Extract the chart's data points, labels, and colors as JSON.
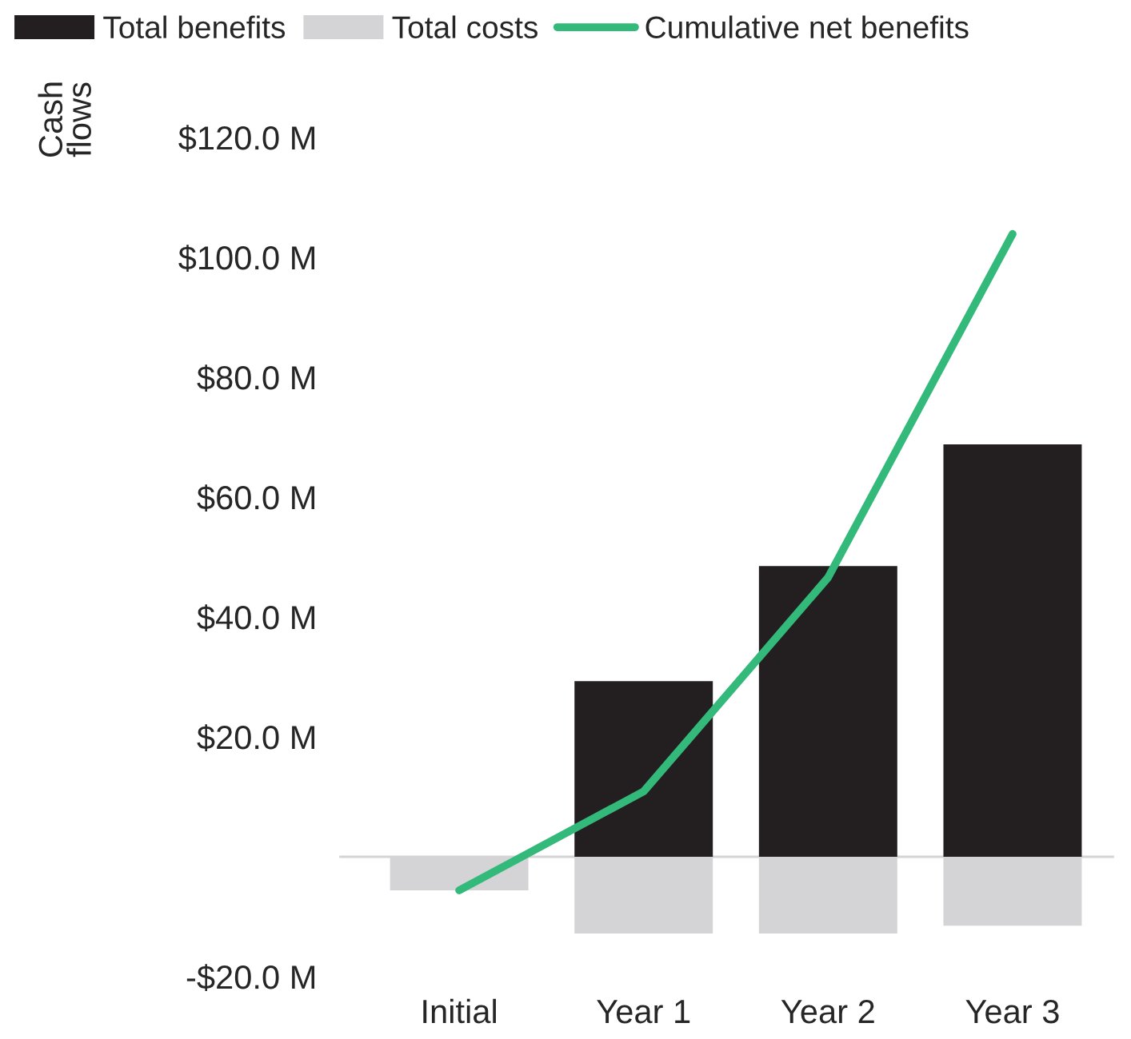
{
  "chart_data": {
    "type": "bar",
    "ylabel": "Cash\nflows",
    "categories": [
      "Initial",
      "Year 1",
      "Year 2",
      "Year 3"
    ],
    "stacked": true,
    "series": [
      {
        "name": "Total benefits",
        "color": "#231f20",
        "values": [
          0,
          29.3,
          48.5,
          68.8
        ]
      },
      {
        "name": "Total costs",
        "color": "#d4d4d6",
        "values": [
          -5.6,
          -12.8,
          -12.8,
          -11.5
        ]
      },
      {
        "name": "Cumulative net benefits",
        "type": "line",
        "color": "#33b97a",
        "values": [
          -5.6,
          10.9,
          46.6,
          103.9
        ]
      }
    ],
    "ylim": [
      -20,
      120
    ],
    "yticks": [
      {
        "value": -20,
        "label": "-$20.0 M"
      },
      {
        "value": 20,
        "label": "$20.0 M"
      },
      {
        "value": 40,
        "label": "$40.0 M"
      },
      {
        "value": 60,
        "label": "$60.0 M"
      },
      {
        "value": 80,
        "label": "$80.0 M"
      },
      {
        "value": 100,
        "label": "$100.0 M"
      },
      {
        "value": 120,
        "label": "$120.0 M"
      }
    ],
    "ref_lines": [
      {
        "axis": "y",
        "value": 0,
        "color": "#d4d4d6"
      }
    ],
    "legend": "top",
    "grid": false,
    "marker": "none",
    "line_style": "solid"
  }
}
